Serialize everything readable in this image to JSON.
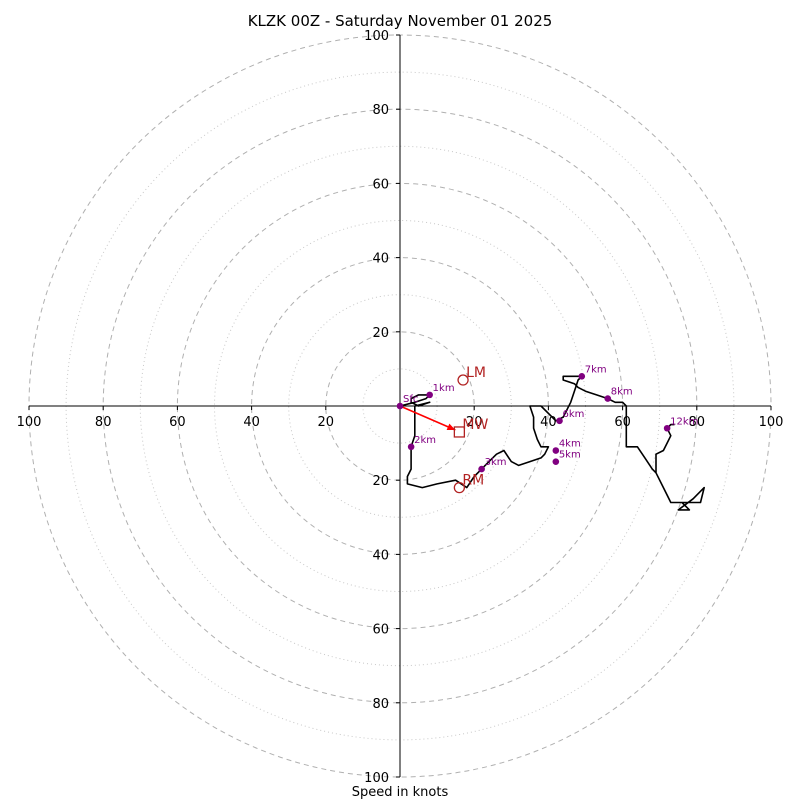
{
  "chart_data": {
    "type": "hodograph",
    "title": "KLZK 00Z - Saturday November 01 2025",
    "xlabel": "Speed in knots",
    "xlim": [
      -100,
      100
    ],
    "ylim": [
      -100,
      100
    ],
    "major_rings": [
      20,
      40,
      60,
      80,
      100
    ],
    "minor_rings": [
      10,
      30,
      50,
      70,
      90
    ],
    "x_ticks": [
      {
        "value": -100,
        "label": "100"
      },
      {
        "value": -80,
        "label": "80"
      },
      {
        "value": -60,
        "label": "60"
      },
      {
        "value": -40,
        "label": "40"
      },
      {
        "value": -20,
        "label": "20"
      },
      {
        "value": 20,
        "label": "20"
      },
      {
        "value": 40,
        "label": "40"
      },
      {
        "value": 60,
        "label": "60"
      },
      {
        "value": 80,
        "label": "80"
      },
      {
        "value": 100,
        "label": "100"
      }
    ],
    "y_ticks": [
      {
        "value": 100,
        "label": "100"
      },
      {
        "value": 80,
        "label": "80"
      },
      {
        "value": 60,
        "label": "60"
      },
      {
        "value": 40,
        "label": "40"
      },
      {
        "value": 20,
        "label": "20"
      },
      {
        "value": -20,
        "label": "20"
      },
      {
        "value": -40,
        "label": "40"
      },
      {
        "value": -60,
        "label": "60"
      },
      {
        "value": -80,
        "label": "80"
      },
      {
        "value": -100,
        "label": "100"
      }
    ],
    "trace": [
      [
        0,
        0
      ],
      [
        4,
        1
      ],
      [
        7,
        2
      ],
      [
        8,
        3
      ],
      [
        5,
        3
      ],
      [
        3,
        2
      ],
      [
        3,
        1
      ],
      [
        5,
        0
      ],
      [
        8,
        1
      ],
      [
        4,
        0
      ],
      [
        4,
        -4
      ],
      [
        4,
        -8
      ],
      [
        3,
        -11
      ],
      [
        3,
        -14
      ],
      [
        3,
        -17
      ],
      [
        2,
        -19
      ],
      [
        2,
        -21
      ],
      [
        6,
        -22
      ],
      [
        10,
        -21
      ],
      [
        15,
        -20
      ],
      [
        18,
        -22
      ],
      [
        20,
        -19
      ],
      [
        22,
        -17
      ],
      [
        24,
        -15
      ],
      [
        26,
        -13
      ],
      [
        28,
        -12
      ],
      [
        30,
        -15
      ],
      [
        32,
        -16
      ],
      [
        35,
        -15
      ],
      [
        38,
        -14
      ],
      [
        39,
        -13
      ],
      [
        40,
        -11
      ],
      [
        38,
        -11
      ],
      [
        37,
        -9
      ],
      [
        36,
        -6
      ],
      [
        36,
        -3
      ],
      [
        35,
        0
      ],
      [
        38,
        0
      ],
      [
        41,
        -3
      ],
      [
        42,
        -4
      ],
      [
        44,
        -3
      ],
      [
        46,
        1
      ],
      [
        47,
        4
      ],
      [
        48,
        7
      ],
      [
        49,
        8
      ],
      [
        44,
        8
      ],
      [
        44,
        7
      ],
      [
        47,
        6
      ],
      [
        48,
        5
      ],
      [
        50,
        4
      ],
      [
        53,
        3
      ],
      [
        56,
        2
      ],
      [
        58,
        1
      ],
      [
        60,
        1
      ],
      [
        61,
        0
      ],
      [
        61,
        -6
      ],
      [
        61,
        -11
      ],
      [
        64,
        -11
      ],
      [
        66,
        -14
      ],
      [
        68,
        -17
      ],
      [
        69,
        -18
      ],
      [
        70,
        -20
      ],
      [
        71,
        -22
      ],
      [
        72,
        -24
      ],
      [
        73,
        -26
      ],
      [
        76,
        -26
      ],
      [
        79,
        -26
      ],
      [
        81,
        -26
      ],
      [
        82,
        -22
      ],
      [
        79,
        -25
      ],
      [
        75,
        -28
      ],
      [
        78,
        -28
      ],
      [
        76,
        -26
      ],
      [
        73,
        -26
      ],
      [
        71,
        -22
      ],
      [
        69,
        -18
      ],
      [
        69,
        -13
      ],
      [
        71,
        -12
      ],
      [
        72,
        -10
      ],
      [
        73,
        -8
      ],
      [
        72,
        -6
      ],
      [
        73,
        -5
      ],
      [
        74,
        -5
      ]
    ],
    "height_points": [
      {
        "label": "Sfc",
        "u": 0,
        "v": 0
      },
      {
        "label": "1km",
        "u": 8,
        "v": 3
      },
      {
        "label": "2km",
        "u": 3,
        "v": -11
      },
      {
        "label": "3km",
        "u": 22,
        "v": -17
      },
      {
        "label": "4km",
        "u": 42,
        "v": -12
      },
      {
        "label": "5km",
        "u": 42,
        "v": -15
      },
      {
        "label": "6km",
        "u": 43,
        "v": -4
      },
      {
        "label": "7km",
        "u": 49,
        "v": 8
      },
      {
        "label": "8km",
        "u": 56,
        "v": 2
      },
      {
        "label": "12km",
        "u": 72,
        "v": -6
      }
    ],
    "storm_motion": {
      "mean_wind": {
        "label": "MW",
        "u": 16,
        "v": -7
      },
      "left_mover": {
        "label": "LM",
        "u": 17,
        "v": 7
      },
      "right_mover": {
        "label": "RM",
        "u": 16,
        "v": -22
      }
    },
    "arrow": {
      "from": [
        0,
        0
      ],
      "to": [
        16,
        -7
      ]
    },
    "colors": {
      "trace": "#000000",
      "height_points": "#800080",
      "storm_markers": "#b22222",
      "arrow": "#ff0000",
      "major_ring": "#b0b0b0",
      "minor_ring": "#c8c8c8"
    }
  }
}
